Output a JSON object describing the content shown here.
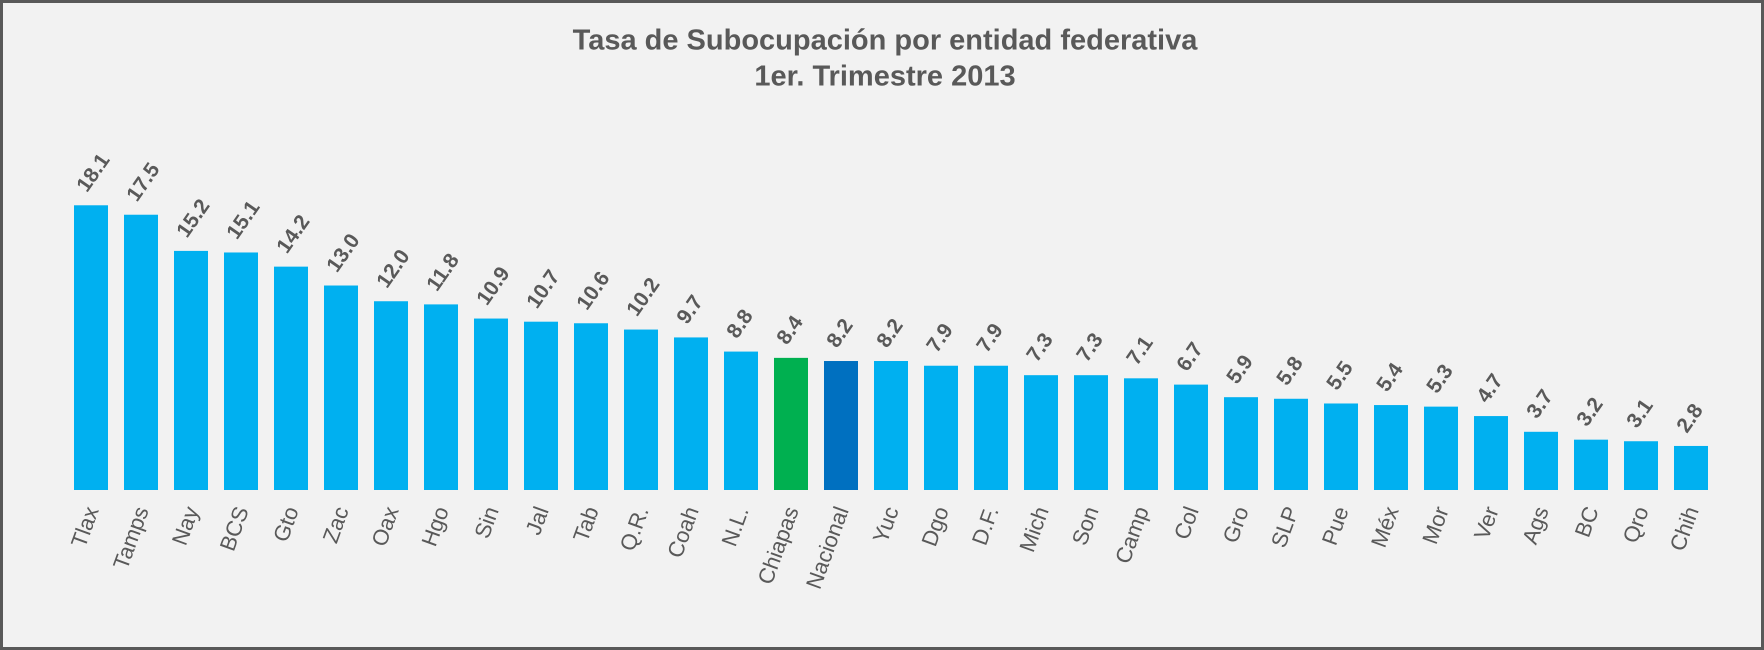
{
  "chart_data": {
    "type": "bar",
    "title": "Tasa de Subocupación por entidad federativa",
    "subtitle": "1er. Trimestre 2013",
    "categories": [
      "Tlax",
      "Tamps",
      "Nay",
      "BCS",
      "Gto",
      "Zac",
      "Oax",
      "Hgo",
      "Sin",
      "Jal",
      "Tab",
      "Q.R.",
      "Coah",
      "N.L.",
      "Chiapas",
      "Nacional",
      "Yuc",
      "Dgo",
      "D.F.",
      "Mich",
      "Son",
      "Camp",
      "Col",
      "Gro",
      "SLP",
      "Pue",
      "Méx",
      "Mor",
      "Ver",
      "Ags",
      "BC",
      "Qro",
      "Chih"
    ],
    "values": [
      18.1,
      17.5,
      15.2,
      15.1,
      14.2,
      13.0,
      12.0,
      11.8,
      10.9,
      10.7,
      10.6,
      10.2,
      9.7,
      8.8,
      8.4,
      8.2,
      8.2,
      7.9,
      7.9,
      7.3,
      7.3,
      7.1,
      6.7,
      5.9,
      5.8,
      5.5,
      5.4,
      5.3,
      4.7,
      3.7,
      3.2,
      3.1,
      2.8
    ],
    "value_labels": [
      "18.1",
      "17.5",
      "15.2",
      "15.1",
      "14.2",
      "13.0",
      "12.0",
      "11.8",
      "10.9",
      "10.7",
      "10.6",
      "10.2",
      "9.7",
      "8.8",
      "8.4",
      "8.2",
      "8.2",
      "7.9",
      "7.9",
      "7.3",
      "7.3",
      "7.1",
      "6.7",
      "5.9",
      "5.8",
      "5.5",
      "5.4",
      "5.3",
      "4.7",
      "3.7",
      "3.2",
      "3.1",
      "2.8"
    ],
    "colors": [
      "#00b0f0",
      "#00b0f0",
      "#00b0f0",
      "#00b0f0",
      "#00b0f0",
      "#00b0f0",
      "#00b0f0",
      "#00b0f0",
      "#00b0f0",
      "#00b0f0",
      "#00b0f0",
      "#00b0f0",
      "#00b0f0",
      "#00b0f0",
      "#00b050",
      "#0070c0",
      "#00b0f0",
      "#00b0f0",
      "#00b0f0",
      "#00b0f0",
      "#00b0f0",
      "#00b0f0",
      "#00b0f0",
      "#00b0f0",
      "#00b0f0",
      "#00b0f0",
      "#00b0f0",
      "#00b0f0",
      "#00b0f0",
      "#00b0f0",
      "#00b0f0",
      "#00b0f0",
      "#00b0f0"
    ],
    "ylim": [
      0,
      20
    ]
  }
}
